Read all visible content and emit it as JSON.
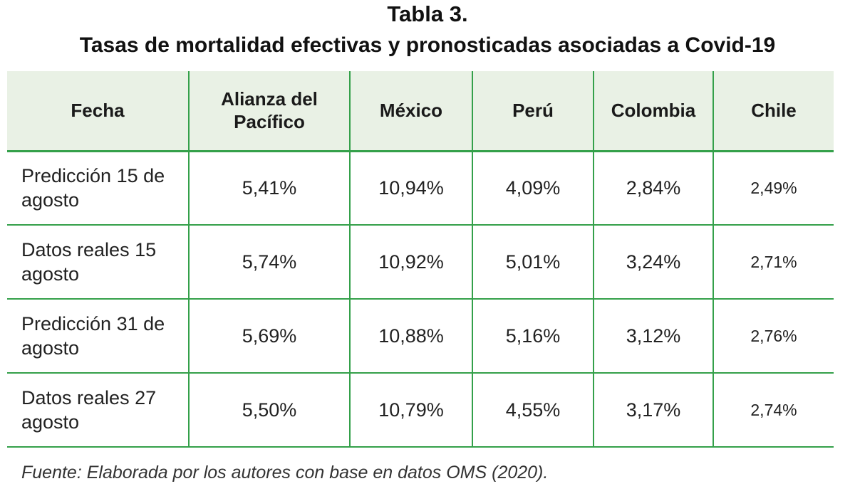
{
  "caption": {
    "label": "Tabla 3.",
    "title": "Tasas de mortalidad efectivas y pronosticadas asociadas a Covid-19"
  },
  "table": {
    "headers": [
      "Fecha",
      "Alianza del Pacífico",
      "México",
      "Perú",
      "Colombia",
      "Chile"
    ],
    "rows": [
      [
        "Predicción 15 de agosto",
        "5,41%",
        "10,94%",
        "4,09%",
        "2,84%",
        "2,49%"
      ],
      [
        "Datos reales 15 agosto",
        "5,74%",
        "10,92%",
        "5,01%",
        "3,24%",
        "2,71%"
      ],
      [
        "Predicción 31 de agosto",
        "5,69%",
        "10,88%",
        "5,16%",
        "3,12%",
        "2,76%"
      ],
      [
        "Datos reales 27 agosto",
        "5,50%",
        "10,79%",
        "4,55%",
        "3,17%",
        "2,74%"
      ]
    ]
  },
  "source": "Fuente: Elaborada por los autores con base en datos OMS (2020).",
  "colors": {
    "rule": "#34a04a",
    "header_bg": "#e9f1e5"
  }
}
